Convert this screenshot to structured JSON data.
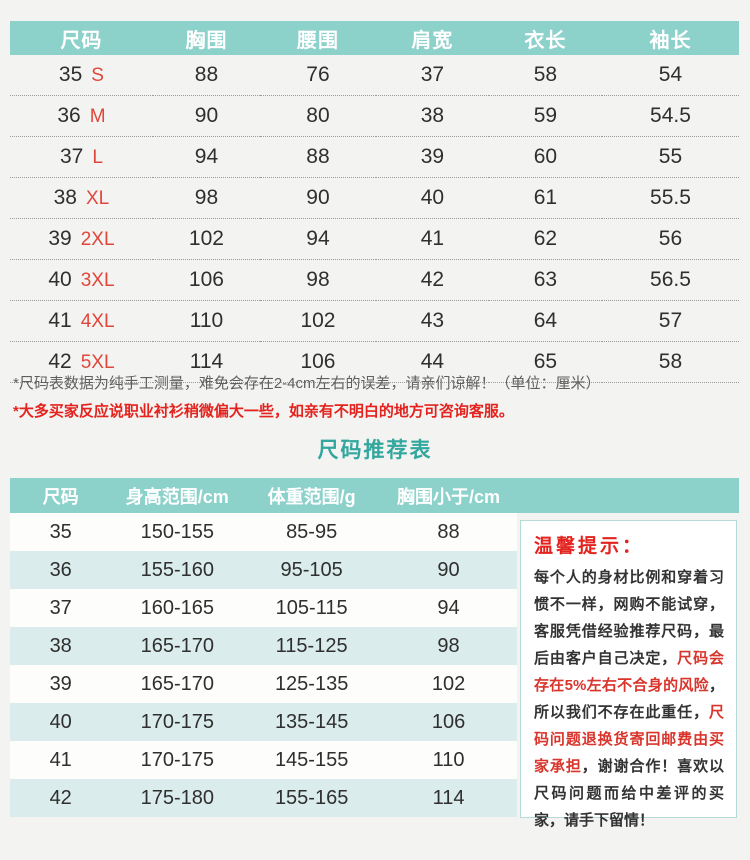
{
  "colors": {
    "header_teal": "#8dd1cb",
    "title_teal": "#33a79e",
    "stripe_blue": "#daeceb",
    "note_red": "#e4231f",
    "size_letter_red": "#e0473c",
    "text_dark": "#2f2f2f"
  },
  "measure_table": {
    "headers": [
      "尺码",
      "胸围",
      "腰围",
      "肩宽",
      "衣长",
      "袖长"
    ],
    "rows": [
      {
        "size": "35",
        "label": "S",
        "chest": "88",
        "waist": "76",
        "shoulder": "37",
        "length": "58",
        "sleeve": "54"
      },
      {
        "size": "36",
        "label": "M",
        "chest": "90",
        "waist": "80",
        "shoulder": "38",
        "length": "59",
        "sleeve": "54.5"
      },
      {
        "size": "37",
        "label": "L",
        "chest": "94",
        "waist": "88",
        "shoulder": "39",
        "length": "60",
        "sleeve": "55"
      },
      {
        "size": "38",
        "label": "XL",
        "chest": "98",
        "waist": "90",
        "shoulder": "40",
        "length": "61",
        "sleeve": "55.5"
      },
      {
        "size": "39",
        "label": "2XL",
        "chest": "102",
        "waist": "94",
        "shoulder": "41",
        "length": "62",
        "sleeve": "56"
      },
      {
        "size": "40",
        "label": "3XL",
        "chest": "106",
        "waist": "98",
        "shoulder": "42",
        "length": "63",
        "sleeve": "56.5"
      },
      {
        "size": "41",
        "label": "4XL",
        "chest": "110",
        "waist": "102",
        "shoulder": "43",
        "length": "64",
        "sleeve": "57"
      },
      {
        "size": "42",
        "label": "5XL",
        "chest": "114",
        "waist": "106",
        "shoulder": "44",
        "length": "65",
        "sleeve": "58"
      }
    ]
  },
  "notes": {
    "measurement_note": "*尺码表数据为纯手工测量，难免会存在2-4cm左右的误差，请亲们谅解！（单位：厘米）",
    "fit_note": "*大多买家反应说职业衬衫稍微偏大一些，如亲有不明白的地方可咨询客服。"
  },
  "recommend_table": {
    "title": "尺码推荐表",
    "headers": [
      "尺码",
      "身高范围/cm",
      "体重范围/g",
      "胸围小于/cm"
    ],
    "rows": [
      [
        "35",
        "150-155",
        "85-95",
        "88"
      ],
      [
        "36",
        "155-160",
        "95-105",
        "90"
      ],
      [
        "37",
        "160-165",
        "105-115",
        "94"
      ],
      [
        "38",
        "165-170",
        "115-125",
        "98"
      ],
      [
        "39",
        "165-170",
        "125-135",
        "102"
      ],
      [
        "40",
        "170-175",
        "135-145",
        "106"
      ],
      [
        "41",
        "170-175",
        "145-155",
        "110"
      ],
      [
        "42",
        "175-180",
        "155-165",
        "114"
      ]
    ]
  },
  "tips": {
    "title": "温馨提示：",
    "segments": [
      {
        "red": false,
        "text": "每个人的身材比例和穿着习惯不一样，网购不能试穿，客服凭借经验推荐尺码，最后由客户自己决定，"
      },
      {
        "red": true,
        "text": "尺码会存在5%左右不合身的风险"
      },
      {
        "red": false,
        "text": "，所以我们不存在此重任，"
      },
      {
        "red": true,
        "text": "尺码问题退换货寄回邮费由买家承担"
      },
      {
        "red": false,
        "text": "，谢谢合作！喜欢以尺码问题而给中差评的买家，请手下留情！"
      }
    ]
  }
}
